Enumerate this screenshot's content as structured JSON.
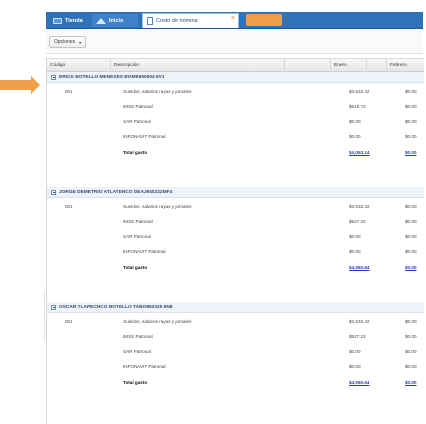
{
  "tabs": [
    {
      "label": "Tienda",
      "icon": "store-icon"
    },
    {
      "label": "Inicio",
      "icon": "home-icon"
    },
    {
      "label": "Costo de nómina",
      "icon": "document-icon",
      "close": "×"
    }
  ],
  "toolbar": {
    "options_label": "Opciones",
    "options_caret": "▾"
  },
  "grid": {
    "columns": {
      "codigo": "Código",
      "descripcion": "Descripción",
      "enero": "Enero",
      "febrero": "Febrero"
    },
    "groups": [
      {
        "name": "ERICK BOTELLO MENESES BOME960604 6V1",
        "rows": [
          {
            "code": "001",
            "desc": "Sueldos, salarios rayas y jornales",
            "enero": "$3,533.42",
            "febrero": "$0.00"
          },
          {
            "code": "",
            "desc": "IMSS Patronal",
            "enero": "$519.72",
            "febrero": "$0.00"
          },
          {
            "code": "",
            "desc": "SAR Patronal",
            "enero": "$0.00",
            "febrero": "$0.00"
          },
          {
            "code": "",
            "desc": "INFONAVIT Patronal",
            "enero": "$0.00",
            "febrero": "$0.00"
          },
          {
            "code": "",
            "desc": "Total gasto",
            "enero": "$4,053.14",
            "febrero": "$0.00",
            "total": true
          }
        ]
      },
      {
        "name": "JORGE DEMETRIO ATLATENCO DEAJ940222MF4",
        "rows": [
          {
            "code": "001",
            "desc": "Sueldos, salarios rayas y jornales",
            "enero": "$3,533.42",
            "febrero": "$0.00"
          },
          {
            "code": "",
            "desc": "IMSS Patronal",
            "enero": "$527.22",
            "febrero": "$0.00"
          },
          {
            "code": "",
            "desc": "SAR Patronal",
            "enero": "$0.00",
            "febrero": "$0.00"
          },
          {
            "code": "",
            "desc": "INFONAVIT Patronal",
            "enero": "$0.00",
            "febrero": "$0.00"
          },
          {
            "code": "",
            "desc": "Total gasto",
            "enero": "$4,060.64",
            "febrero": "$0.00",
            "total": true
          }
        ]
      },
      {
        "name": "OSCAR TLAPECHCO BOTELLO TABO850325 6N8",
        "rows": [
          {
            "code": "001",
            "desc": "Sueldos, salarios rayas y jornales",
            "enero": "$3,533.42",
            "febrero": "$0.00"
          },
          {
            "code": "",
            "desc": "IMSS Patronal",
            "enero": "$527.22",
            "febrero": "$0.00"
          },
          {
            "code": "",
            "desc": "SAR Patronal",
            "enero": "$0.00",
            "febrero": "$0.00"
          },
          {
            "code": "",
            "desc": "INFONAVIT Patronal",
            "enero": "$0.00",
            "febrero": "$0.00"
          },
          {
            "code": "",
            "desc": "Total gasto",
            "enero": "$4,060.64",
            "febrero": "$0.00",
            "total": true
          }
        ]
      }
    ]
  },
  "colors": {
    "tabbar": "#2f72b7",
    "accent": "#f0a04b",
    "total_link": "#2a40a8",
    "group_bg": "#eef3f9"
  }
}
